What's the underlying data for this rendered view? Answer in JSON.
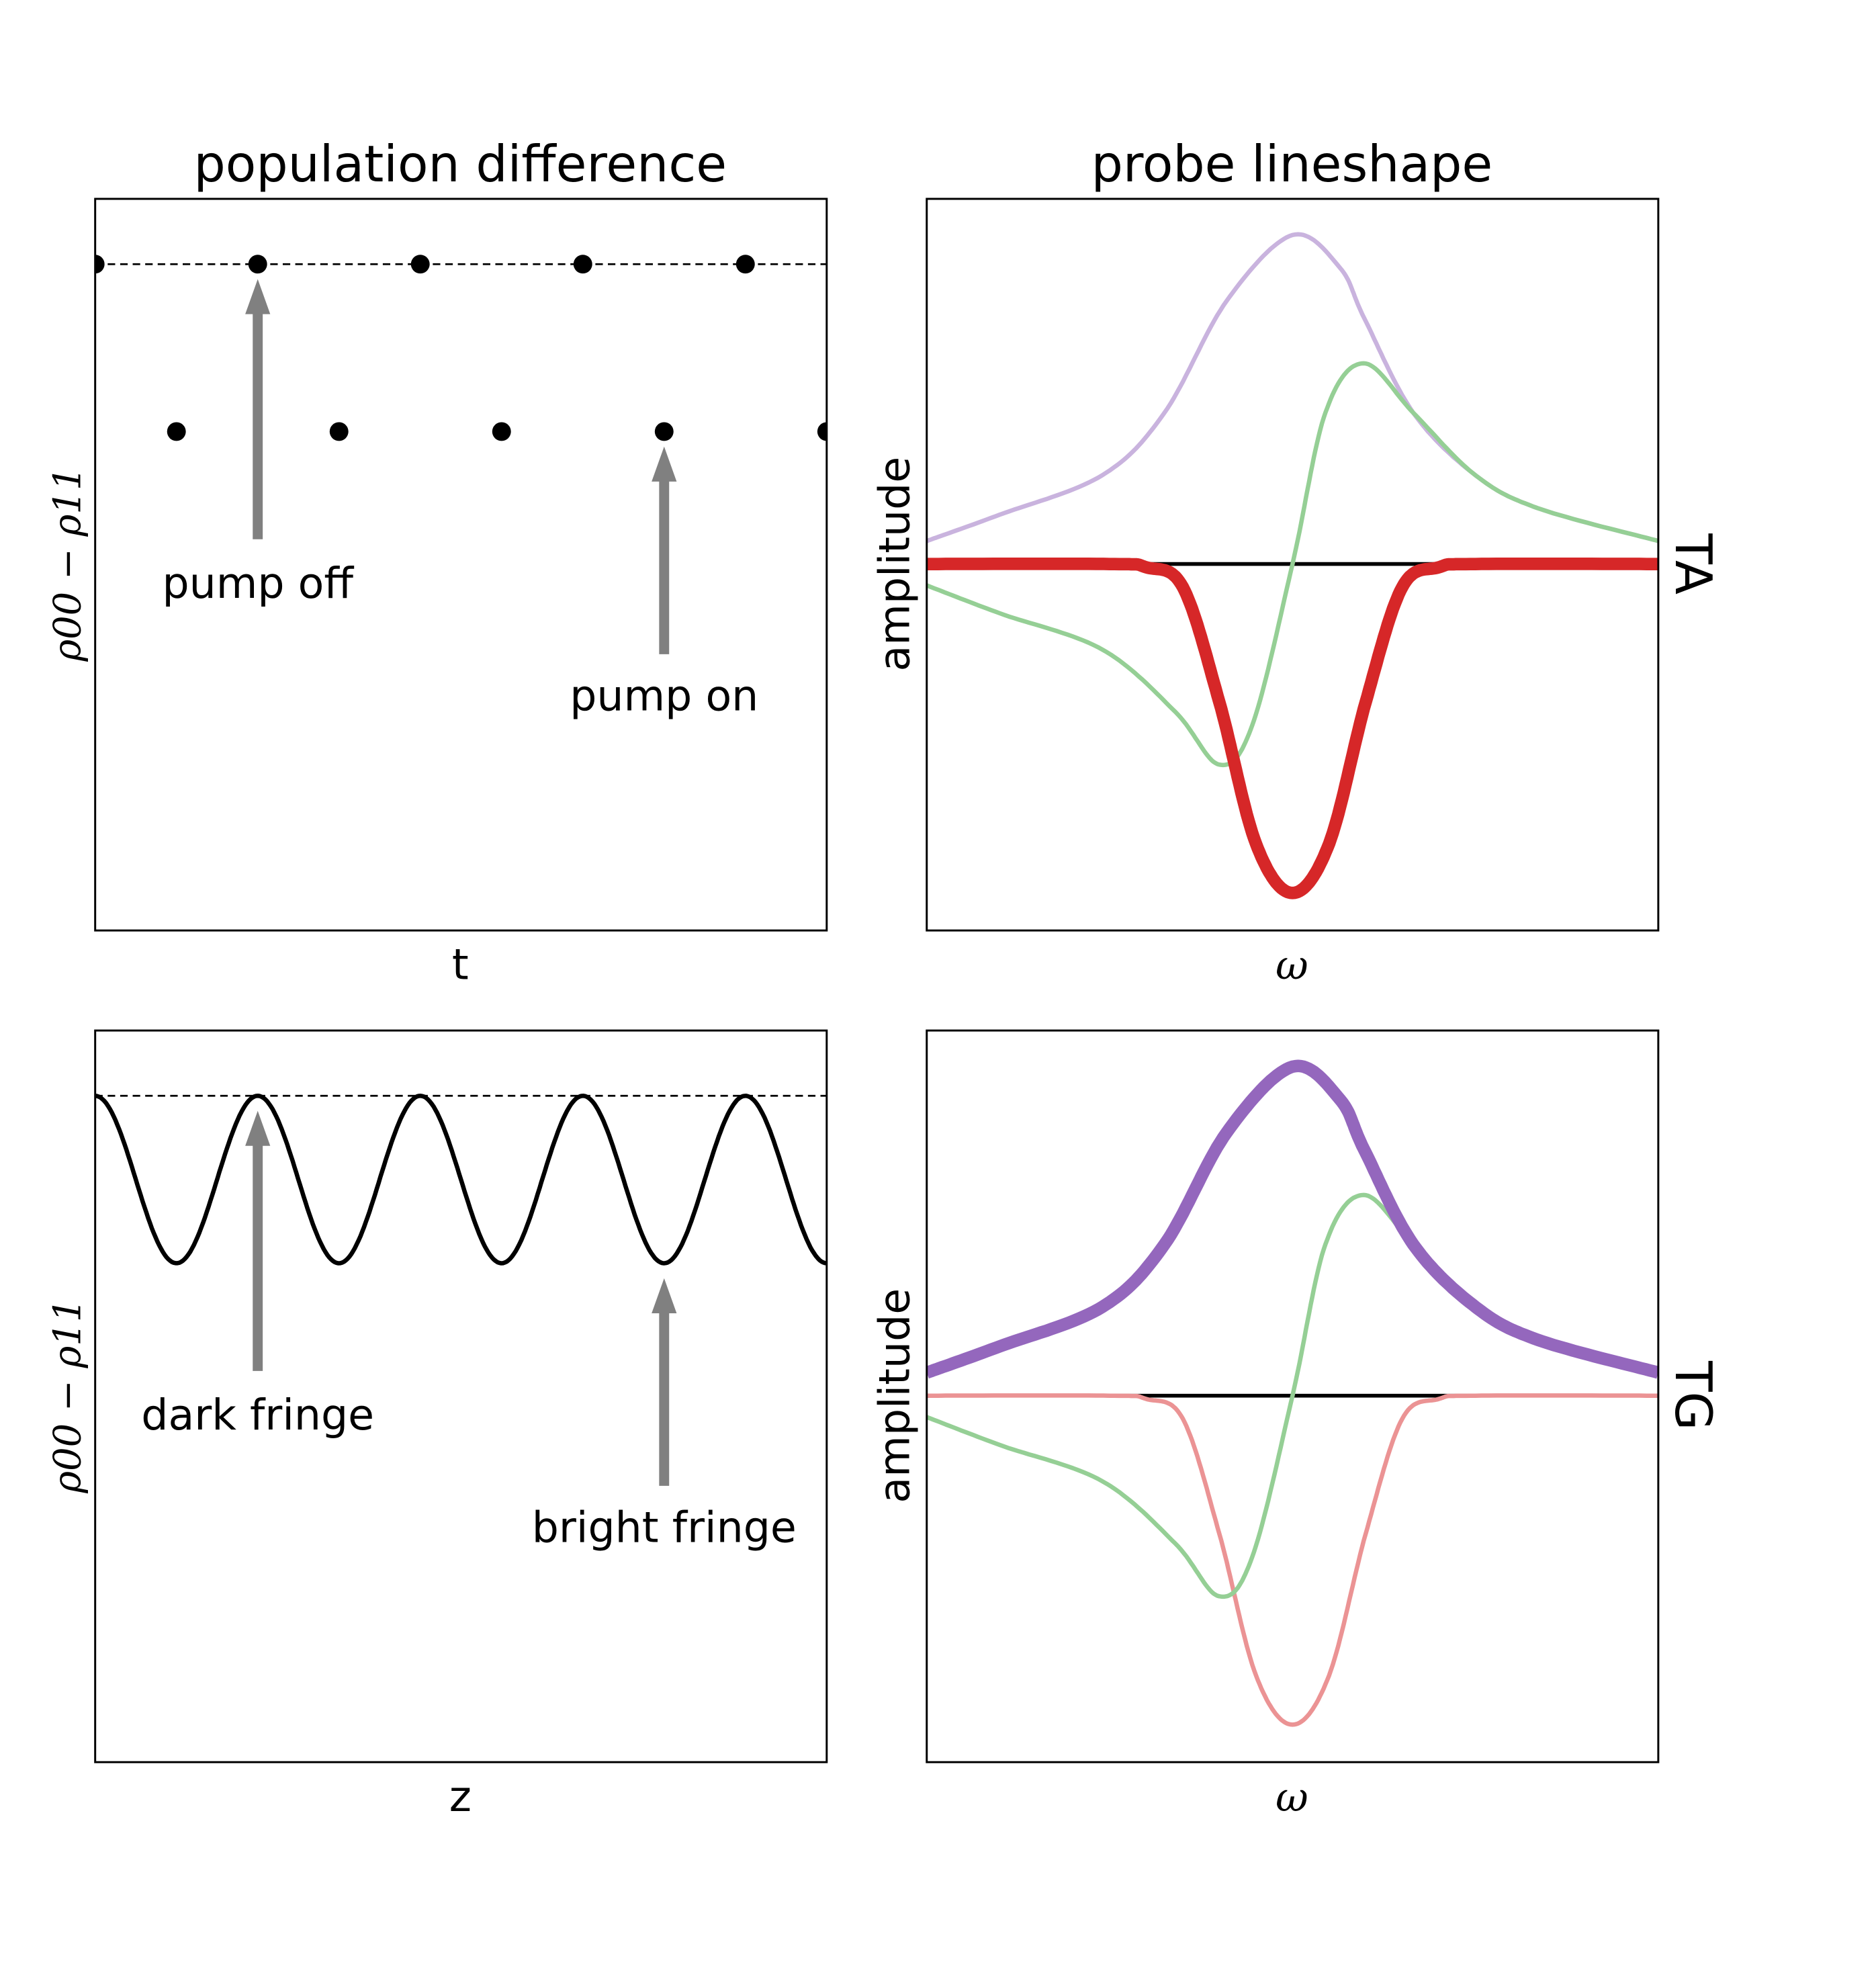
{
  "titles": {
    "left": "population difference",
    "right": "probe lineshape"
  },
  "colors": {
    "red": "#d62728",
    "purple": "#9467bd",
    "green": "#2ca02c",
    "arrow": "#808080",
    "black": "#000000"
  },
  "chart_data": [
    {
      "panel": "top-left",
      "type": "scatter",
      "title": "population difference",
      "xlabel": "t",
      "ylabel": "ρ00 − ρ11",
      "xlim": [
        0,
        4.5
      ],
      "ylim": [
        -2.98,
        1.39
      ],
      "ticks": false,
      "reference_line": {
        "y": 1,
        "style": "dashed"
      },
      "points": {
        "x": [
          0,
          0.5,
          1,
          1.5,
          2,
          2.5,
          3,
          3.5,
          4,
          4.5
        ],
        "y": [
          1,
          0,
          1,
          0,
          1,
          0,
          1,
          0,
          1,
          0
        ]
      },
      "annotations": [
        {
          "text": "pump off",
          "arrow_to": [
            1,
            1
          ]
        },
        {
          "text": "pump on",
          "arrow_to": [
            3.5,
            0
          ]
        }
      ]
    },
    {
      "panel": "top-right",
      "type": "line",
      "xlabel": "ω",
      "ylabel": "amplitude",
      "side_label": "TA",
      "xlim": [
        -1,
        1
      ],
      "ylim": [
        -1.114,
        1.11
      ],
      "ticks": false,
      "reference_line": {
        "y": 0,
        "style": "solid"
      },
      "series": [
        {
          "color": "purple",
          "emphasis": "faint",
          "x": [
            -1,
            -0.8,
            -0.52,
            -0.35,
            -0.18,
            0,
            0.13,
            0.195,
            0.33,
            0.5,
            0.67,
            1
          ],
          "y": [
            0.07,
            0.15,
            0.27,
            0.46,
            0.8,
            1.0,
            0.9,
            0.75,
            0.46,
            0.27,
            0.17,
            0.07
          ]
        },
        {
          "color": "green",
          "emphasis": "faint",
          "x": [
            -1,
            -0.8,
            -0.52,
            -0.32,
            -0.2,
            -0.11,
            0,
            0.09,
            0.195,
            0.33,
            0.5,
            0.67,
            1
          ],
          "y": [
            -0.065,
            -0.15,
            -0.26,
            -0.45,
            -0.61,
            -0.49,
            0,
            0.46,
            0.61,
            0.46,
            0.27,
            0.17,
            0.07
          ]
        },
        {
          "color": "red",
          "emphasis": "bold",
          "x": [
            -1,
            -0.5,
            -0.4,
            -0.3,
            -0.2,
            -0.1,
            0,
            0.1,
            0.2,
            0.3,
            0.4,
            0.5,
            1
          ],
          "y": [
            0,
            0,
            -0.01,
            -0.07,
            -0.42,
            -0.85,
            -1.0,
            -0.85,
            -0.42,
            -0.07,
            -0.01,
            0,
            0
          ]
        }
      ]
    },
    {
      "panel": "bottom-left",
      "type": "line",
      "xlabel": "z",
      "ylabel": "ρ00 − ρ11",
      "xlim": [
        0,
        4.5
      ],
      "ylim": [
        -2.98,
        1.39
      ],
      "ticks": false,
      "reference_line": {
        "y": 1,
        "style": "dashed"
      },
      "series": [
        {
          "color": "black",
          "function": "0.5 + 0.5·cos(2πz)"
        }
      ],
      "annotations": [
        {
          "text": "dark fringe",
          "arrow_to": [
            1,
            1
          ]
        },
        {
          "text": "bright fringe",
          "arrow_to": [
            3.5,
            0
          ]
        }
      ]
    },
    {
      "panel": "bottom-right",
      "type": "line",
      "xlabel": "ω",
      "ylabel": "amplitude",
      "side_label": "TG",
      "xlim": [
        -1,
        1
      ],
      "ylim": [
        -1.114,
        1.11
      ],
      "ticks": false,
      "reference_line": {
        "y": 0,
        "style": "solid"
      },
      "series": [
        {
          "color": "red",
          "emphasis": "faint",
          "x": [
            -1,
            -0.5,
            -0.4,
            -0.3,
            -0.2,
            -0.1,
            0,
            0.1,
            0.2,
            0.3,
            0.4,
            0.5,
            1
          ],
          "y": [
            0,
            0,
            -0.01,
            -0.07,
            -0.42,
            -0.85,
            -1.0,
            -0.85,
            -0.42,
            -0.07,
            -0.01,
            0,
            0
          ]
        },
        {
          "color": "green",
          "emphasis": "faint",
          "x": [
            -1,
            -0.8,
            -0.52,
            -0.32,
            -0.2,
            -0.11,
            0,
            0.09,
            0.195,
            0.33,
            0.5,
            0.67,
            1
          ],
          "y": [
            -0.065,
            -0.15,
            -0.26,
            -0.45,
            -0.61,
            -0.49,
            0,
            0.46,
            0.61,
            0.46,
            0.27,
            0.17,
            0.07
          ]
        },
        {
          "color": "purple",
          "emphasis": "bold",
          "x": [
            -1,
            -0.8,
            -0.52,
            -0.35,
            -0.18,
            0,
            0.13,
            0.195,
            0.33,
            0.5,
            0.67,
            1
          ],
          "y": [
            0.07,
            0.15,
            0.27,
            0.46,
            0.8,
            1.0,
            0.9,
            0.75,
            0.46,
            0.27,
            0.17,
            0.07
          ]
        }
      ]
    }
  ]
}
